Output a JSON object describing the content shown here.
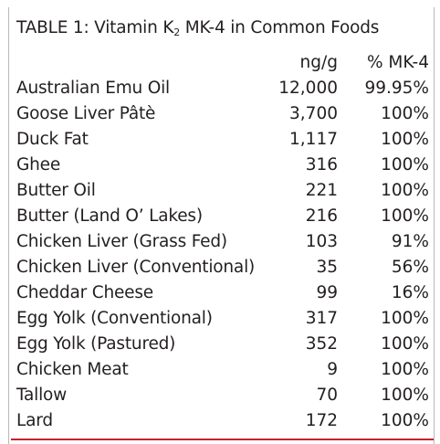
{
  "table": {
    "title_prefix": "TABLE 1: Vitamin K",
    "title_subscript": "2",
    "title_suffix": " MK-4 in Common Foods",
    "col_ng": "ng/g",
    "col_pct": "% MK-4",
    "rows": [
      {
        "food": "Australian Emu Oil",
        "ng": "12,000",
        "pct": "99.95%"
      },
      {
        "food": "Goose Liver Pâtè",
        "ng": "3,700",
        "pct": "100%"
      },
      {
        "food": "Duck Fat",
        "ng": "1,117",
        "pct": "100%"
      },
      {
        "food": "Ghee",
        "ng": "316",
        "pct": "100%"
      },
      {
        "food": "Butter Oil",
        "ng": "221",
        "pct": "100%"
      },
      {
        "food": "Butter (Land O’ Lakes)",
        "ng": "216",
        "pct": "100%"
      },
      {
        "food": "Chicken Liver (Grass Fed)",
        "ng": "103",
        "pct": "91%"
      },
      {
        "food": "Chicken Liver (Conventional)",
        "ng": "35",
        "pct": "56%"
      },
      {
        "food": "Cheddar Cheese",
        "ng": "99",
        "pct": "16%"
      },
      {
        "food": "Egg Yolk (Conventional)",
        "ng": "317",
        "pct": "100%"
      },
      {
        "food": "Egg Yolk (Pastured)",
        "ng": "352",
        "pct": "100%"
      },
      {
        "food": "Chicken Meat",
        "ng": "9",
        "pct": "100%"
      },
      {
        "food": "Tallow",
        "ng": "70",
        "pct": "100%"
      },
      {
        "food": "Lard",
        "ng": "172",
        "pct": "100%"
      }
    ]
  },
  "colors": {
    "text": "#231f20",
    "rule": "#c8202f",
    "frame": "#b9b9b9"
  }
}
